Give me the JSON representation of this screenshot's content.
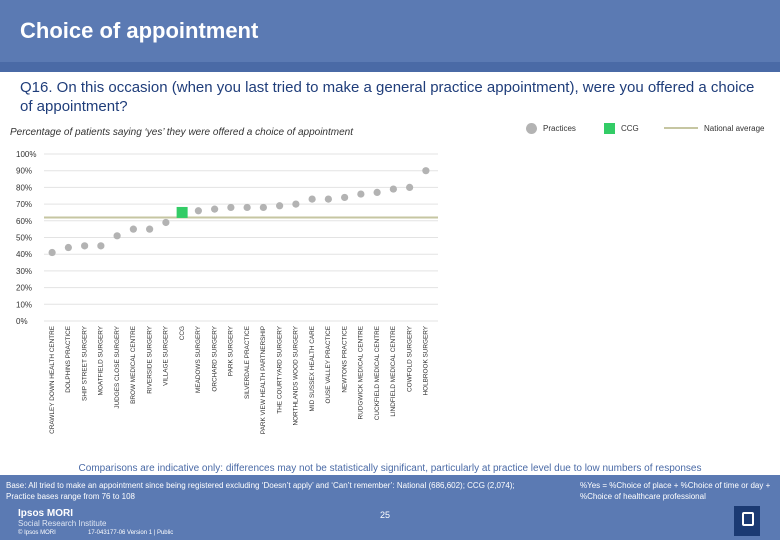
{
  "title": "Choice of appointment",
  "question": "Q16. On this occasion (when you last tried to make a general practice appointment), were you offered a choice of appointment?",
  "subtitle": "Percentage of patients saying ‘yes’ they were offered a choice of appointment",
  "legend": {
    "practices": "Practices",
    "ccg": "CCG",
    "national": "National average"
  },
  "colors": {
    "header": "#5b7ab3",
    "practice_dot": "#b3b3b3",
    "ccg_square": "#33cc66",
    "national_line": "#c6c6a2",
    "question_text": "#1f3d7a"
  },
  "chart_data": {
    "type": "scatter",
    "title": "Percentage of patients saying ‘yes’ they were offered a choice of appointment",
    "xlabel": "",
    "ylabel": "",
    "ylim": [
      0,
      100
    ],
    "yticks": [
      0,
      10,
      20,
      30,
      40,
      50,
      60,
      70,
      80,
      90,
      100
    ],
    "ytick_labels": [
      "0%",
      "10%",
      "20%",
      "30%",
      "40%",
      "50%",
      "60%",
      "70%",
      "80%",
      "90%",
      "100%"
    ],
    "national_average": 62,
    "categories": [
      "CRAWLEY DOWN HEALTH CENTRE",
      "DOLPHINS PRACTICE",
      "SHIP STREET SURGERY",
      "MOATFIELD SURGERY",
      "JUDGES CLOSE SURGERY",
      "BROW MEDICAL CENTRE",
      "RIVERSIDE SURGERY",
      "VILLAGE SURGERY",
      "CCG",
      "MEADOWS SURGERY",
      "ORCHARD SURGERY",
      "PARK SURGERY",
      "SILVERDALE PRACTICE",
      "PARK VIEW HEALTH PARTNERSHIP",
      "THE COURTYARD SURGERY",
      "NORTHLANDS WOOD SURGERY",
      "MID SUSSEX HEALTH CARE",
      "OUSE VALLEY PRACTICE",
      "NEWTONS PRACTICE",
      "RUDGWICK MEDICAL CENTRE",
      "CUCKFIELD MEDICAL CENTRE",
      "LINDFIELD MEDICAL CENTRE",
      "COWFOLD SURGERY",
      "HOLBROOK SURGERY"
    ],
    "series": [
      {
        "name": "Practices",
        "values": [
          41,
          44,
          45,
          45,
          51,
          55,
          55,
          59,
          null,
          66,
          67,
          68,
          68,
          68,
          69,
          70,
          73,
          73,
          74,
          76,
          77,
          79,
          80,
          90
        ]
      },
      {
        "name": "CCG",
        "values": [
          null,
          null,
          null,
          null,
          null,
          null,
          null,
          null,
          65,
          null,
          null,
          null,
          null,
          null,
          null,
          null,
          null,
          null,
          null,
          null,
          null,
          null,
          null,
          null
        ]
      }
    ]
  },
  "footer": {
    "comparison": "Comparisons are indicative only: differences may not be statistically significant, particularly at practice level due to low numbers of responses",
    "base": "Base: All tried to make an appointment since being registered excluding ‘Doesn’t apply’ and ‘Can’t remember’: National (686,602); CCG (2,074); Practice bases range from 76 to 108",
    "note": "%Yes = %Choice of place + %Choice of time or day + %Choice of healthcare professional",
    "logo_name": "Ipsos MORI",
    "logo_sub": "Social Research Institute",
    "page_number": "25",
    "copyright": "© Ipsos MORI",
    "job_ref": "17-043177-06 Version 1 | Public"
  }
}
